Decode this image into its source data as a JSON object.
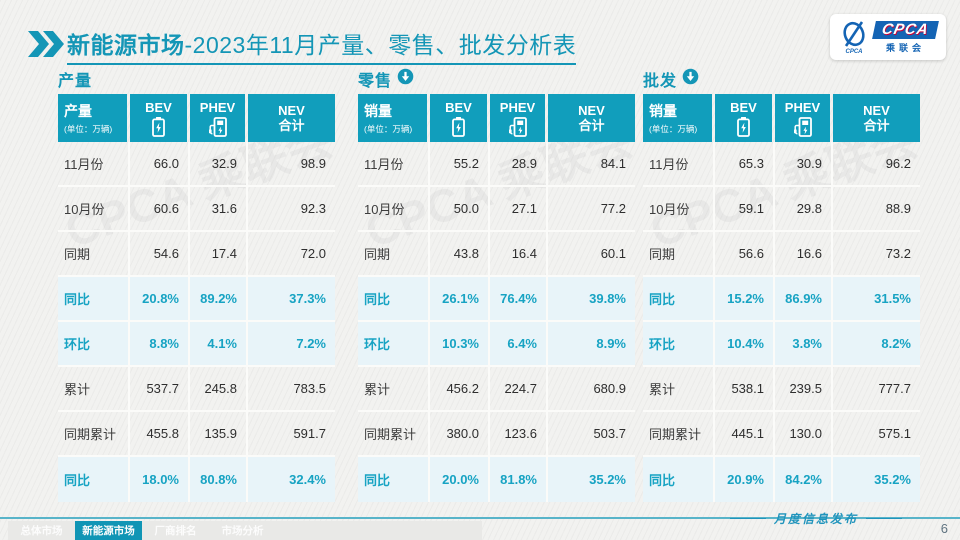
{
  "title": {
    "bold": "新能源市场",
    "rest": "-2023年11月产量、零售、批发分析表"
  },
  "logo": {
    "emblem_sub": "CPCA",
    "cpca": "CPCA",
    "cn": "乘联会"
  },
  "watermark": "CPCA 乘联会",
  "tables": [
    {
      "section": "产量",
      "trend": "none",
      "measure": "产量",
      "unit": "(单位：万辆)",
      "columns": [
        "BEV",
        "PHEV",
        "NEV"
      ],
      "nev_sub": "合计",
      "rows": [
        {
          "label": "11月份",
          "values": [
            "66.0",
            "32.9",
            "98.9"
          ],
          "highlight": false
        },
        {
          "label": "10月份",
          "values": [
            "60.6",
            "31.6",
            "92.3"
          ],
          "highlight": false
        },
        {
          "label": "同期",
          "values": [
            "54.6",
            "17.4",
            "72.0"
          ],
          "highlight": false
        },
        {
          "label": "同比",
          "values": [
            "20.8%",
            "89.2%",
            "37.3%"
          ],
          "highlight": true
        },
        {
          "label": "环比",
          "values": [
            "8.8%",
            "4.1%",
            "7.2%"
          ],
          "highlight": true
        },
        {
          "label": "累计",
          "values": [
            "537.7",
            "245.8",
            "783.5"
          ],
          "highlight": false
        },
        {
          "label": "同期累计",
          "values": [
            "455.8",
            "135.9",
            "591.7"
          ],
          "highlight": false
        },
        {
          "label": "同比",
          "values": [
            "18.0%",
            "80.8%",
            "32.4%"
          ],
          "highlight": true
        }
      ]
    },
    {
      "section": "零售",
      "trend": "down",
      "measure": "销量",
      "unit": "(单位：万辆)",
      "columns": [
        "BEV",
        "PHEV",
        "NEV"
      ],
      "nev_sub": "合计",
      "rows": [
        {
          "label": "11月份",
          "values": [
            "55.2",
            "28.9",
            "84.1"
          ],
          "highlight": false
        },
        {
          "label": "10月份",
          "values": [
            "50.0",
            "27.1",
            "77.2"
          ],
          "highlight": false
        },
        {
          "label": "同期",
          "values": [
            "43.8",
            "16.4",
            "60.1"
          ],
          "highlight": false
        },
        {
          "label": "同比",
          "values": [
            "26.1%",
            "76.4%",
            "39.8%"
          ],
          "highlight": true
        },
        {
          "label": "环比",
          "values": [
            "10.3%",
            "6.4%",
            "8.9%"
          ],
          "highlight": true
        },
        {
          "label": "累计",
          "values": [
            "456.2",
            "224.7",
            "680.9"
          ],
          "highlight": false
        },
        {
          "label": "同期累计",
          "values": [
            "380.0",
            "123.6",
            "503.7"
          ],
          "highlight": false
        },
        {
          "label": "同比",
          "values": [
            "20.0%",
            "81.8%",
            "35.2%"
          ],
          "highlight": true
        }
      ]
    },
    {
      "section": "批发",
      "trend": "down",
      "measure": "销量",
      "unit": "(单位：万辆)",
      "columns": [
        "BEV",
        "PHEV",
        "NEV"
      ],
      "nev_sub": "合计",
      "rows": [
        {
          "label": "11月份",
          "values": [
            "65.3",
            "30.9",
            "96.2"
          ],
          "highlight": false
        },
        {
          "label": "10月份",
          "values": [
            "59.1",
            "29.8",
            "88.9"
          ],
          "highlight": false
        },
        {
          "label": "同期",
          "values": [
            "56.6",
            "16.6",
            "73.2"
          ],
          "highlight": false
        },
        {
          "label": "同比",
          "values": [
            "15.2%",
            "86.9%",
            "31.5%"
          ],
          "highlight": true
        },
        {
          "label": "环比",
          "values": [
            "10.4%",
            "3.8%",
            "8.2%"
          ],
          "highlight": true
        },
        {
          "label": "累计",
          "values": [
            "538.1",
            "239.5",
            "777.7"
          ],
          "highlight": false
        },
        {
          "label": "同期累计",
          "values": [
            "445.1",
            "130.0",
            "575.1"
          ],
          "highlight": false
        },
        {
          "label": "同比",
          "values": [
            "20.9%",
            "84.2%",
            "35.2%"
          ],
          "highlight": true
        }
      ]
    }
  ],
  "footer": {
    "tabs": [
      {
        "label": "总体市场",
        "active": false
      },
      {
        "label": "新能源市场",
        "active": true
      },
      {
        "label": "厂商排名",
        "active": false
      },
      {
        "label": "市场分析",
        "active": false
      }
    ],
    "publication": "月度信息发布",
    "page": "6"
  },
  "colors": {
    "accent": "#1496B6",
    "header_bg": "#119EBC",
    "highlight_bg": "#E8F4F9",
    "highlight_text": "#17A3C3"
  }
}
